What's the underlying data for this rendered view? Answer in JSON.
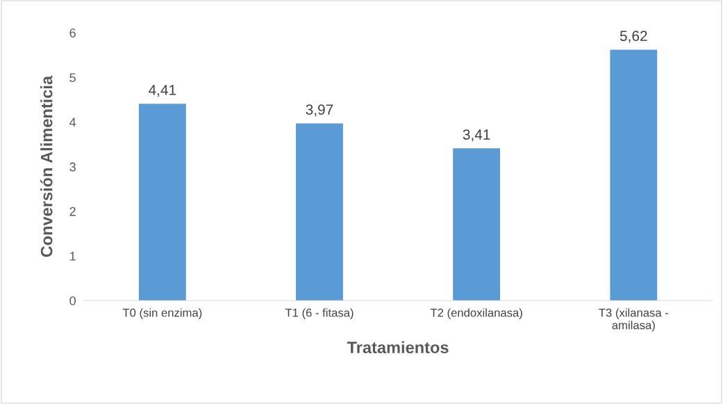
{
  "chart_data": {
    "type": "bar",
    "xlabel": "Tratamientos",
    "ylabel": "Conversión Alimenticia",
    "categories": [
      "T0 (sin enzima)",
      "T1 (6 - fitasa)",
      "T2 (endoxilanasa)",
      "T3 (xilanasa -\namilasa)"
    ],
    "values": [
      4.41,
      3.97,
      3.41,
      5.62
    ],
    "value_labels": [
      "4,41",
      "3,97",
      "3,41",
      "5,62"
    ],
    "color": "#5b9bd5",
    "ylim": [
      0,
      6
    ],
    "yticks": [
      0,
      1,
      2,
      3,
      4,
      5,
      6
    ],
    "grid": false,
    "legend": false
  }
}
